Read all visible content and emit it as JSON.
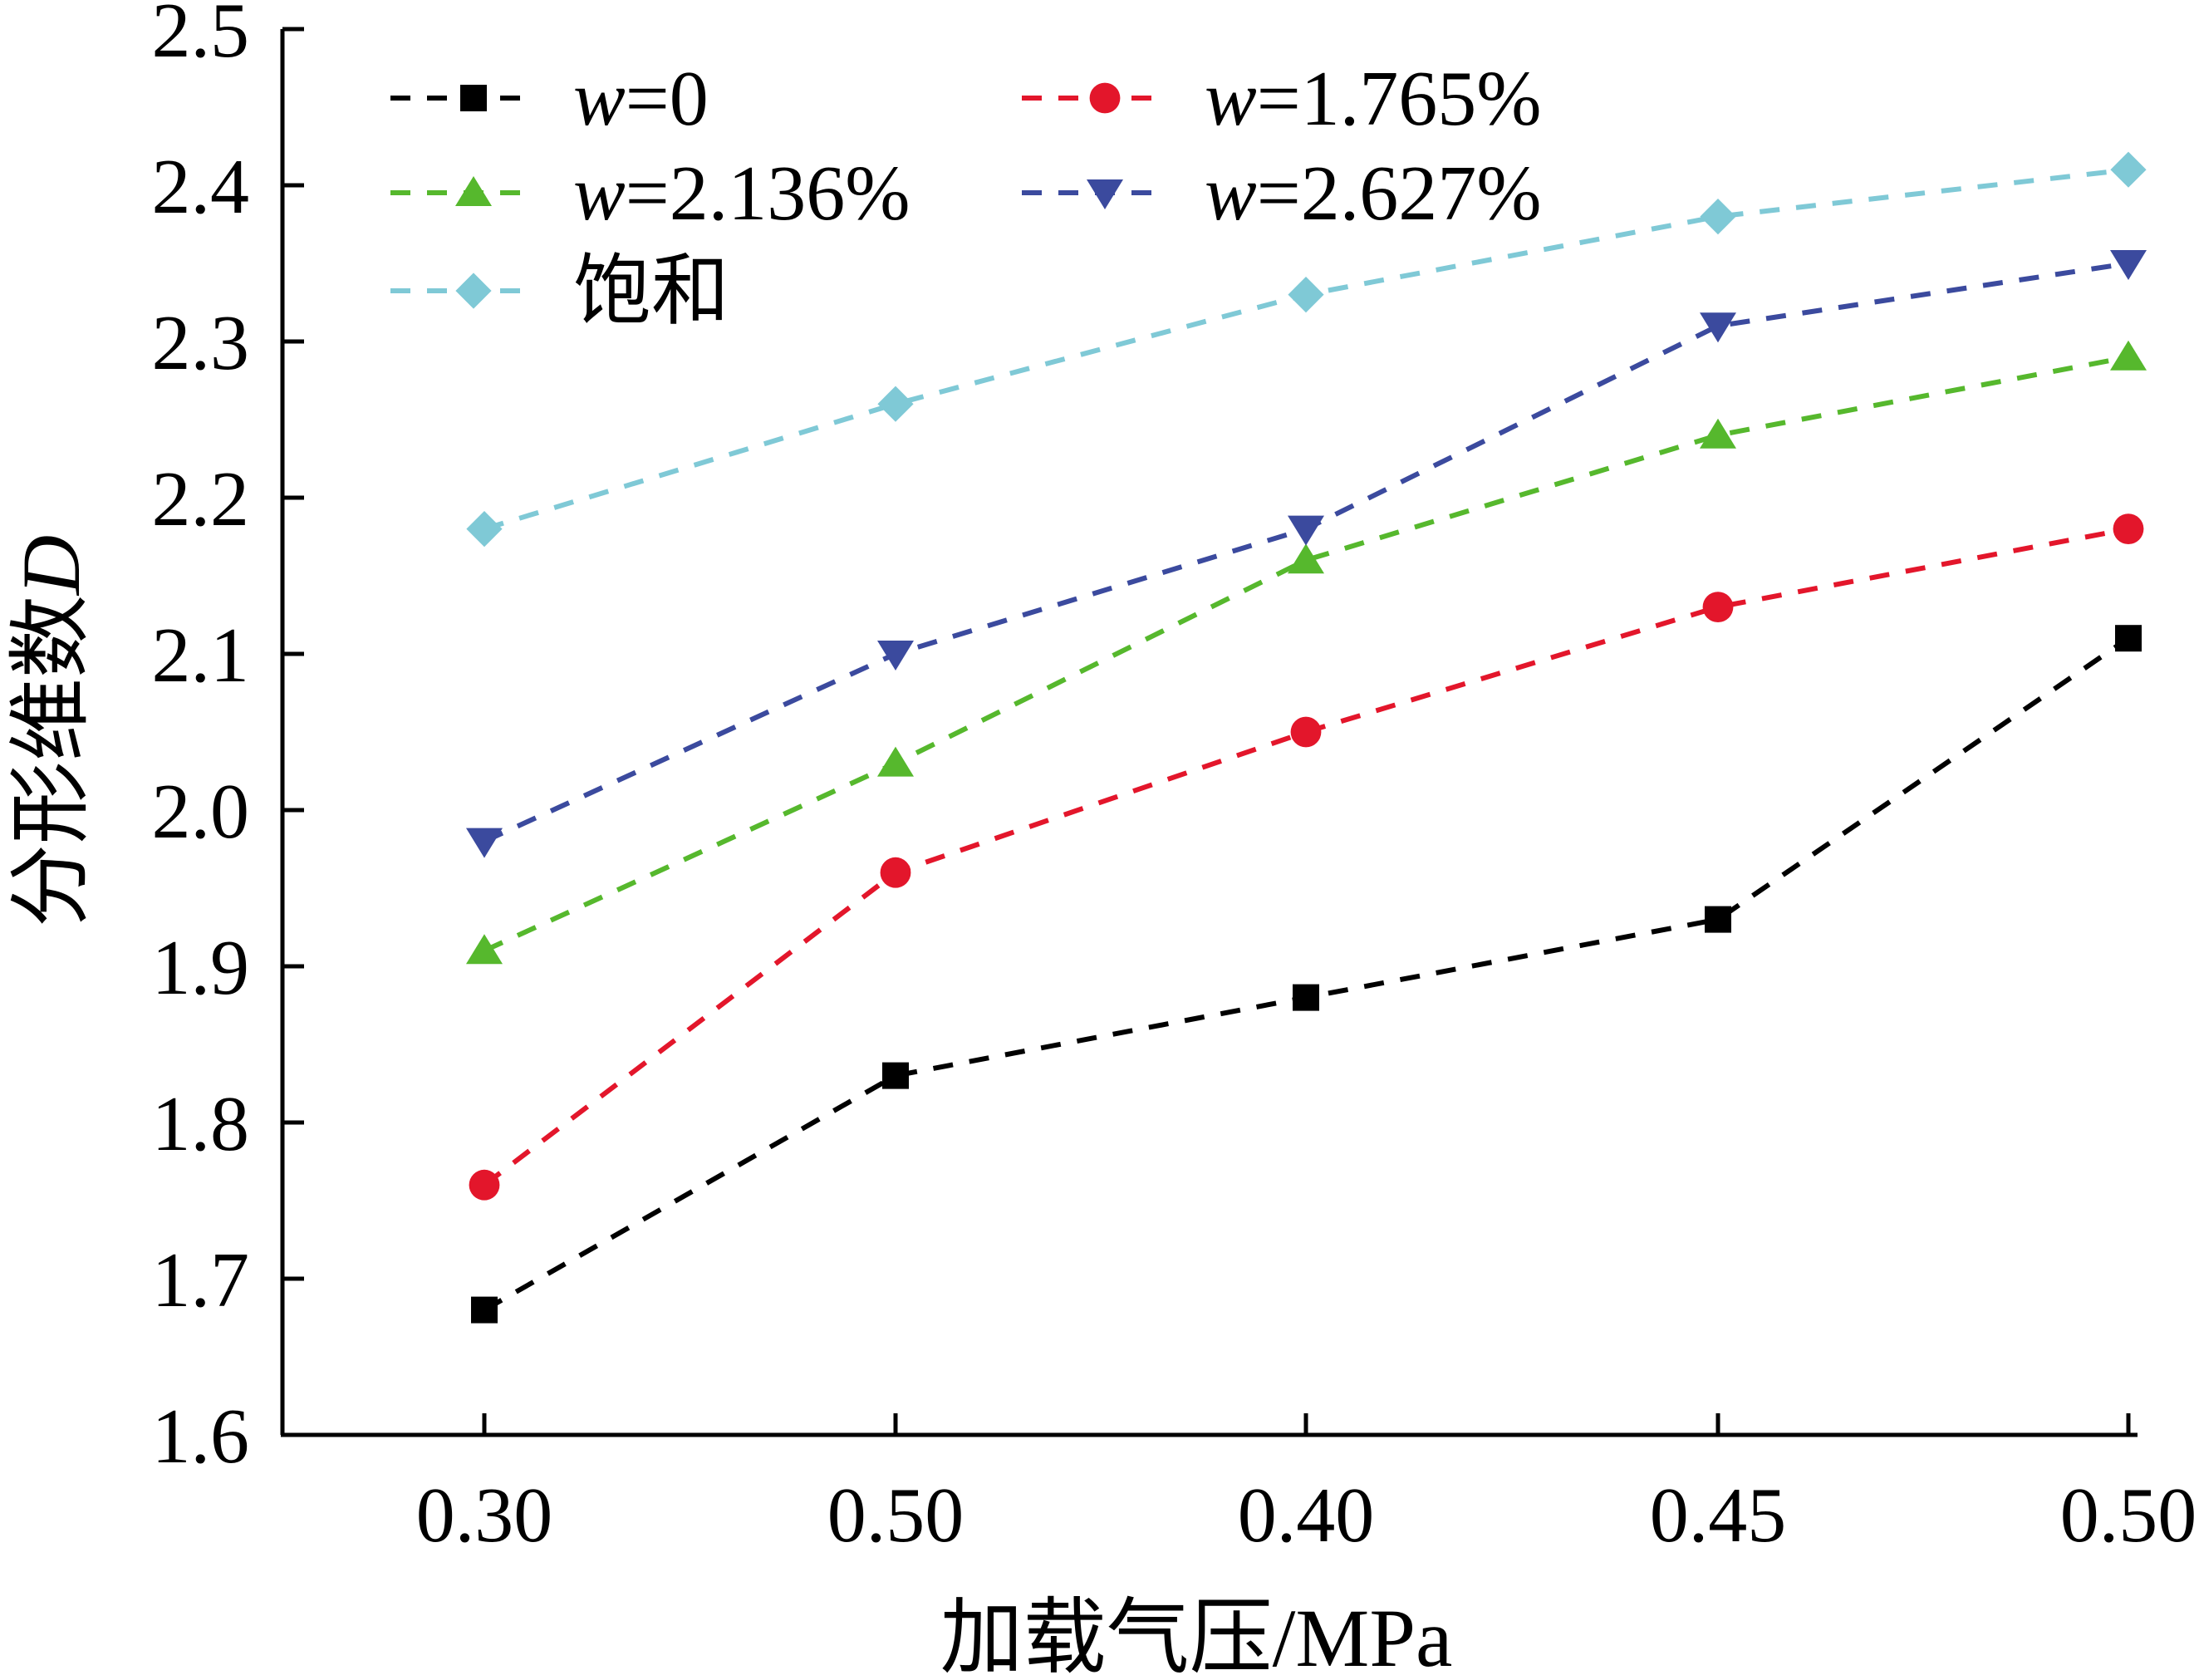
{
  "chart_data": {
    "type": "line",
    "categories": [
      "0.30",
      "0.50",
      "0.40",
      "0.45",
      "0.50"
    ],
    "xlabel": "加载气压/MPa",
    "ylabel": "分形维数",
    "ylabel_var": "D",
    "ylim": [
      1.6,
      2.5
    ],
    "yticks": [
      "1.6",
      "1.7",
      "1.8",
      "1.9",
      "2.0",
      "2.1",
      "2.2",
      "2.3",
      "2.4",
      "2.5"
    ],
    "legend_position": "top-left",
    "grid": false,
    "series": [
      {
        "name": "w=0",
        "name_var": "w",
        "name_rest": "=0",
        "color": "#000000",
        "marker": "square",
        "values": [
          1.68,
          1.83,
          1.88,
          1.93,
          2.11
        ]
      },
      {
        "name": "w=1.765%",
        "name_var": "w",
        "name_rest": "=1.765%",
        "color": "#e3162b",
        "marker": "circle",
        "values": [
          1.76,
          1.96,
          2.05,
          2.13,
          2.18
        ]
      },
      {
        "name": "w=2.136%",
        "name_var": "w",
        "name_rest": "=2.136%",
        "color": "#56b82d",
        "marker": "triangle-up",
        "values": [
          1.91,
          2.03,
          2.16,
          2.24,
          2.29
        ]
      },
      {
        "name": "w=2.627%",
        "name_var": "w",
        "name_rest": "=2.627%",
        "color": "#3b4a9e",
        "marker": "triangle-down",
        "values": [
          1.98,
          2.1,
          2.18,
          2.31,
          2.35
        ]
      },
      {
        "name": "饱和",
        "name_var": "",
        "name_rest": "饱和",
        "color": "#7fc9d6",
        "marker": "diamond",
        "values": [
          2.18,
          2.26,
          2.33,
          2.38,
          2.41
        ]
      }
    ]
  }
}
